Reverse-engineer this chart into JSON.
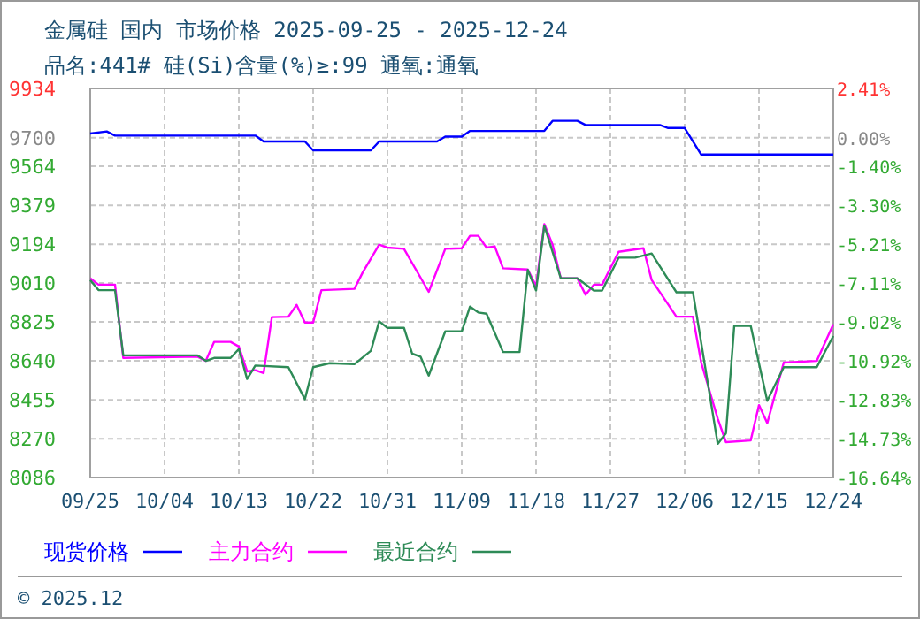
{
  "chart_data": {
    "type": "line",
    "title": "金属硅 国内 市场价格 2025-09-25 - 2025-12-24",
    "subtitle": "品名:441# 硅(Si)含量(%)≥:99 通氧:通氧",
    "xlim": [
      "2025-09-25",
      "2025-12-24"
    ],
    "xticks": [
      {
        "value": "2025-09-25",
        "label": "09/25"
      },
      {
        "value": "2025-10-04",
        "label": "10/04"
      },
      {
        "value": "2025-10-13",
        "label": "10/13"
      },
      {
        "value": "2025-10-22",
        "label": "10/22"
      },
      {
        "value": "2025-10-31",
        "label": "10/31"
      },
      {
        "value": "2025-11-09",
        "label": "11/09"
      },
      {
        "value": "2025-11-18",
        "label": "11/18"
      },
      {
        "value": "2025-11-27",
        "label": "11/27"
      },
      {
        "value": "2025-12-06",
        "label": "12/06"
      },
      {
        "value": "2025-12-15",
        "label": "12/15"
      },
      {
        "value": "2025-12-24",
        "label": "12/24"
      }
    ],
    "ylim": [
      8086,
      9934
    ],
    "yticks": [
      8086,
      8270,
      8455,
      8640,
      8825,
      9010,
      9194,
      9379,
      9564,
      9700,
      9934
    ],
    "y2lim": [
      -16.64,
      2.41
    ],
    "y2ticks": [
      {
        "value": -16.64,
        "label": "-16.64%"
      },
      {
        "value": -14.73,
        "label": "-14.73%"
      },
      {
        "value": -12.83,
        "label": "-12.83%"
      },
      {
        "value": -10.92,
        "label": "-10.92%"
      },
      {
        "value": -9.02,
        "label": "-9.02%"
      },
      {
        "value": -7.11,
        "label": "-7.11%"
      },
      {
        "value": -5.21,
        "label": "-5.21%"
      },
      {
        "value": -3.3,
        "label": "-3.30%"
      },
      {
        "value": -1.4,
        "label": "-1.40%"
      },
      {
        "value": 0,
        "label": "0.00%"
      },
      {
        "value": 2.41,
        "label": "2.41%"
      }
    ],
    "grid": true,
    "legend": "bottom",
    "annotations": [
      "© 2025.12"
    ],
    "series": [
      {
        "name": "现货价格",
        "color": "#0000ff",
        "x": [
          "2025-09-25",
          "2025-09-27",
          "2025-09-28",
          "2025-10-15",
          "2025-10-16",
          "2025-10-21",
          "2025-10-22",
          "2025-10-29",
          "2025-10-30",
          "2025-11-06",
          "2025-11-07",
          "2025-11-09",
          "2025-11-10",
          "2025-11-19",
          "2025-11-20",
          "2025-11-23",
          "2025-11-24",
          "2025-12-03",
          "2025-12-04",
          "2025-12-06",
          "2025-12-08",
          "2025-12-24"
        ],
        "values": [
          9720,
          9730,
          9710,
          9710,
          9682,
          9682,
          9640,
          9640,
          9682,
          9682,
          9705,
          9705,
          9732,
          9732,
          9780,
          9780,
          9760,
          9760,
          9746,
          9746,
          9620,
          9620
        ]
      },
      {
        "name": "主力合约",
        "color": "#ff00ff",
        "x": [
          "2025-09-25",
          "2025-09-26",
          "2025-09-28",
          "2025-09-29",
          "2025-10-08",
          "2025-10-09",
          "2025-10-10",
          "2025-10-12",
          "2025-10-13",
          "2025-10-14",
          "2025-10-15",
          "2025-10-16",
          "2025-10-17",
          "2025-10-19",
          "2025-10-20",
          "2025-10-21",
          "2025-10-22",
          "2025-10-23",
          "2025-10-27",
          "2025-10-28",
          "2025-10-30",
          "2025-10-31",
          "2025-11-02",
          "2025-11-05",
          "2025-11-07",
          "2025-11-09",
          "2025-11-10",
          "2025-11-11",
          "2025-11-12",
          "2025-11-13",
          "2025-11-14",
          "2025-11-17",
          "2025-11-18",
          "2025-11-19",
          "2025-11-20",
          "2025-11-21",
          "2025-11-23",
          "2025-11-24",
          "2025-11-25",
          "2025-11-26",
          "2025-11-28",
          "2025-12-01",
          "2025-12-02",
          "2025-12-05",
          "2025-12-07",
          "2025-12-08",
          "2025-12-10",
          "2025-12-11",
          "2025-12-14",
          "2025-12-15",
          "2025-12-16",
          "2025-12-18",
          "2025-12-22",
          "2025-12-24"
        ],
        "values": [
          9032,
          9002,
          9002,
          8654,
          8660,
          8640,
          8730,
          8730,
          8708,
          8590,
          8596,
          8582,
          8848,
          8850,
          8906,
          8822,
          8822,
          8976,
          8982,
          9060,
          9192,
          9178,
          9172,
          8968,
          9172,
          9175,
          9234,
          9234,
          9178,
          9184,
          9080,
          9074,
          8996,
          9290,
          9192,
          9032,
          9032,
          8954,
          9002,
          9002,
          9158,
          9175,
          9024,
          8850,
          8850,
          8632,
          8366,
          8254,
          8262,
          8430,
          8344,
          8632,
          8640,
          8814
        ]
      },
      {
        "name": "最近合约",
        "color": "#2e8b57",
        "x": [
          "2025-09-25",
          "2025-09-26",
          "2025-09-28",
          "2025-09-29",
          "2025-10-08",
          "2025-10-09",
          "2025-10-10",
          "2025-10-12",
          "2025-10-13",
          "2025-10-14",
          "2025-10-15",
          "2025-10-19",
          "2025-10-21",
          "2025-10-22",
          "2025-10-24",
          "2025-10-27",
          "2025-10-29",
          "2025-10-30",
          "2025-10-31",
          "2025-11-02",
          "2025-11-03",
          "2025-11-04",
          "2025-11-05",
          "2025-11-07",
          "2025-11-09",
          "2025-11-10",
          "2025-11-11",
          "2025-11-12",
          "2025-11-14",
          "2025-11-16",
          "2025-11-17",
          "2025-11-18",
          "2025-11-19",
          "2025-11-21",
          "2025-11-23",
          "2025-11-25",
          "2025-11-26",
          "2025-11-28",
          "2025-11-30",
          "2025-12-02",
          "2025-12-05",
          "2025-12-07",
          "2025-12-10",
          "2025-12-11",
          "2025-12-12",
          "2025-12-14",
          "2025-12-16",
          "2025-12-18",
          "2025-12-22",
          "2025-12-24"
        ],
        "values": [
          9024,
          8976,
          8976,
          8666,
          8666,
          8640,
          8654,
          8654,
          8696,
          8554,
          8618,
          8610,
          8458,
          8610,
          8629,
          8624,
          8688,
          8828,
          8797,
          8797,
          8674,
          8660,
          8570,
          8780,
          8780,
          8898,
          8870,
          8864,
          8682,
          8682,
          9072,
          8974,
          9282,
          9032,
          9032,
          8974,
          8974,
          9130,
          9130,
          9150,
          8966,
          8966,
          8246,
          8296,
          8806,
          8806,
          8450,
          8610,
          8610,
          8758
        ]
      }
    ]
  }
}
